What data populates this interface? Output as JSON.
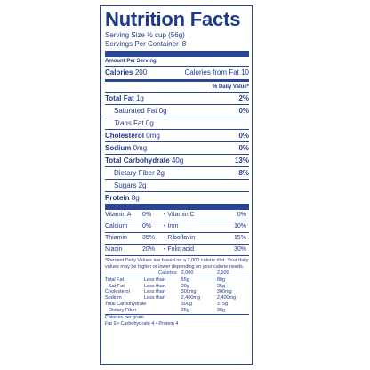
{
  "title": "Nutrition Facts",
  "serving_size": "Serving Size ½ cup (56g)",
  "servings_per_container_label": "Servings Per Container",
  "servings_per_container_value": "8",
  "amount_per_serving": "Amount Per Serving",
  "calories_label": "Calories",
  "calories_value": "200",
  "calories_from_fat": "Calories from Fat 10",
  "daily_value_header": "% Daily Value*",
  "nutrients": [
    {
      "label": "Total Fat",
      "amount": "1g",
      "dv": "2%"
    },
    {
      "label": "Saturated Fat",
      "amount": "0g",
      "dv": "0%"
    },
    {
      "label": "Trans",
      "label2": "Fat",
      "amount": "0g",
      "dv": ""
    },
    {
      "label": "Cholesterol",
      "amount": "0mg",
      "dv": "0%"
    },
    {
      "label": "Sodium",
      "amount": "0mg",
      "dv": "0%"
    },
    {
      "label": "Total Carbohydrate",
      "amount": "40g",
      "dv": "13%"
    },
    {
      "label": "Dietary Fiber",
      "amount": "2g",
      "dv": "8%"
    },
    {
      "label": "Sugars",
      "amount": "2g",
      "dv": ""
    },
    {
      "label": "Protein",
      "amount": "8g",
      "dv": ""
    }
  ],
  "vitamins": [
    {
      "a": "Vitamin A",
      "a_pct": "0%",
      "b": "• Vitamin C",
      "b_pct": "0%"
    },
    {
      "a": "Calcium",
      "a_pct": "0%",
      "b": "• Iron",
      "b_pct": "10%"
    },
    {
      "a": "Thiamin",
      "a_pct": "35%",
      "b": "• Riboflavin",
      "b_pct": "15%"
    },
    {
      "a": "Niacin",
      "a_pct": "20%",
      "b": "• Folic acid",
      "b_pct": "30%"
    }
  ],
  "footnote": "*Percent Daily Values are based on a 2,000 calorie diet. Your daily values may be higher or lower depending on your calorie needs.",
  "dv_table": {
    "calories_label": "Calories:",
    "col1": "2,000",
    "col2": "2,500",
    "rows": [
      {
        "label": "Total Fat",
        "qual": "Less than",
        "v1": "65g",
        "v2": "80g"
      },
      {
        "label": "Sat Fat",
        "qual": "Less than",
        "v1": "20g",
        "v2": "25g"
      },
      {
        "label": "Cholesterol",
        "qual": "Less than",
        "v1": "300mg",
        "v2": "300mg"
      },
      {
        "label": "Sodium",
        "qual": "Less than",
        "v1": "2,400mg",
        "v2": "2,400mg"
      },
      {
        "label": "Total Carbohydrate",
        "qual": "",
        "v1": "300g",
        "v2": "375g"
      },
      {
        "label": "Dietary Fiber",
        "qual": "",
        "v1": "25g",
        "v2": "30g"
      }
    ]
  },
  "calories_per_gram_label": "Calories per gram",
  "calories_per_gram_values": "Fat 9 • Carbohydrate 4 • Protein 4",
  "colors": {
    "ink": "#1f3a8c",
    "rule": "#2a4596",
    "background": "#ffffff"
  }
}
